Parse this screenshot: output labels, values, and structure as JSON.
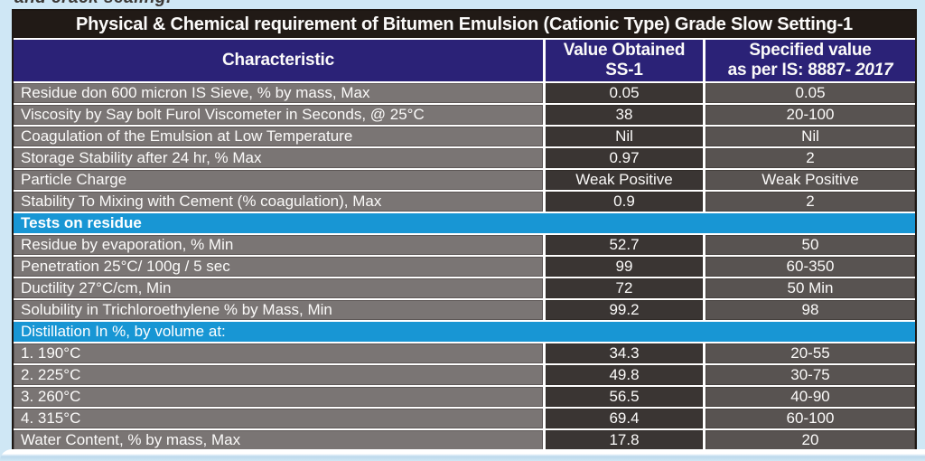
{
  "page": {
    "top_clipped_text": "and crack sealing."
  },
  "colors": {
    "page_background": "#cfe7f5",
    "title_bar_background": "#211a16",
    "header_background": "#2b2277",
    "section_row_background": "#1896d4",
    "characteristic_cell_background": "#7a7574",
    "value_cell_background": "#3a3533",
    "spec_cell_background": "#585351",
    "text_color": "#fbfaf9"
  },
  "table": {
    "title": "Physical & Chemical requirement of Bitumen Emulsion (Cationic Type) Grade Slow Setting-1",
    "header": {
      "characteristic": "Characteristic",
      "value_line1": "Value Obtained",
      "value_line2": "SS-1",
      "spec_line1": "Specified value",
      "spec_line2_prefix": "as per IS: 8887-",
      "spec_line2_year": "2017"
    },
    "rows": [
      {
        "characteristic": "Residue don 600 micron IS Sieve, % by mass, Max",
        "value": "0.05",
        "spec": "0.05"
      },
      {
        "characteristic": "Viscosity by Say bolt Furol Viscometer in Seconds, @ 25°C",
        "value": "38",
        "spec": "20-100"
      },
      {
        "characteristic": "Coagulation of the Emulsion at Low Temperature",
        "value": "Nil",
        "spec": "Nil"
      },
      {
        "characteristic": "Storage Stability after 24 hr, % Max",
        "value": "0.97",
        "spec": "2"
      },
      {
        "characteristic": "Particle Charge",
        "value": "Weak Positive",
        "spec": "Weak Positive"
      },
      {
        "characteristic": "Stability To Mixing with Cement (% coagulation), Max",
        "value": "0.9",
        "spec": "2"
      },
      {
        "section": true,
        "bold": true,
        "label": "Tests on residue"
      },
      {
        "characteristic": "Residue by evaporation, % Min",
        "value": "52.7",
        "spec": "50"
      },
      {
        "characteristic": "Penetration 25°C/ 100g / 5 sec",
        "value": "99",
        "spec": "60-350"
      },
      {
        "characteristic": "Ductility 27°C/cm, Min",
        "value": "72",
        "spec": "50 Min"
      },
      {
        "characteristic": "Solubility in Trichloroethylene % by Mass, Min",
        "value": "99.2",
        "spec": "98"
      },
      {
        "section": true,
        "bold": false,
        "label": "Distillation In %, by volume at:"
      },
      {
        "characteristic": "1. 190°C",
        "value": "34.3",
        "spec": "20-55"
      },
      {
        "characteristic": "2. 225°C",
        "value": "49.8",
        "spec": "30-75"
      },
      {
        "characteristic": "3. 260°C",
        "value": "56.5",
        "spec": "40-90"
      },
      {
        "characteristic": "4. 315°C",
        "value": "69.4",
        "spec": "60-100"
      },
      {
        "characteristic": "Water Content, % by mass, Max",
        "value": "17.8",
        "spec": "20"
      }
    ]
  }
}
